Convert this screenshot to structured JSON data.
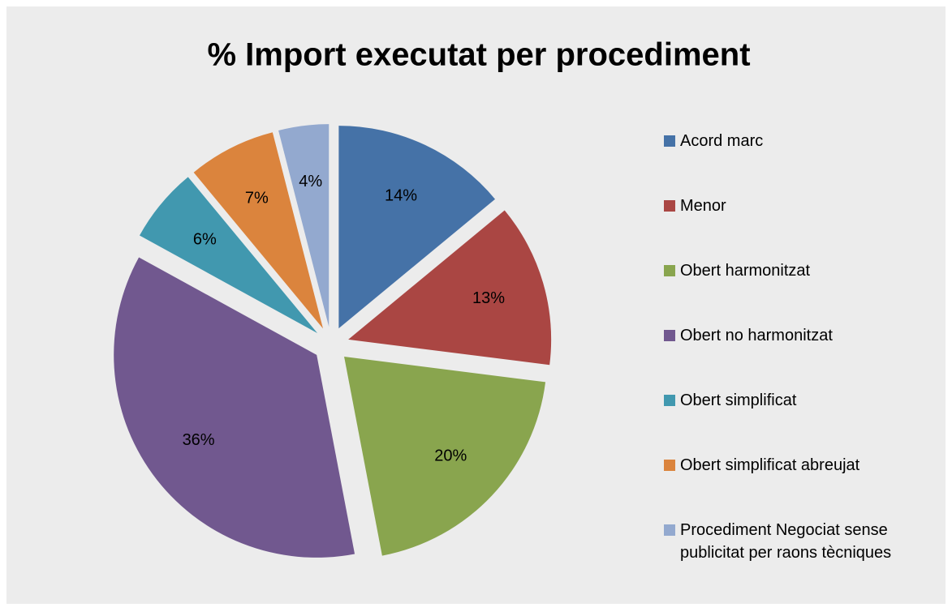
{
  "chart_data": {
    "type": "pie",
    "title": "% Import executat per procediment",
    "categories": [
      "Acord marc",
      "Menor",
      "Obert harmonitzat",
      "Obert no harmonitzat",
      "Obert simplificat",
      "Obert simplificat abreujat",
      "Procediment Negociat sense publicitat per raons tècniques"
    ],
    "values": [
      14,
      13,
      20,
      36,
      6,
      7,
      4
    ],
    "value_labels": [
      "14%",
      "13%",
      "20%",
      "36%",
      "6%",
      "7%",
      "4%"
    ],
    "colors": [
      "#4572a7",
      "#aa4643",
      "#89a54e",
      "#71588f",
      "#4198af",
      "#db843d",
      "#93a9cf"
    ],
    "legend": "right"
  }
}
